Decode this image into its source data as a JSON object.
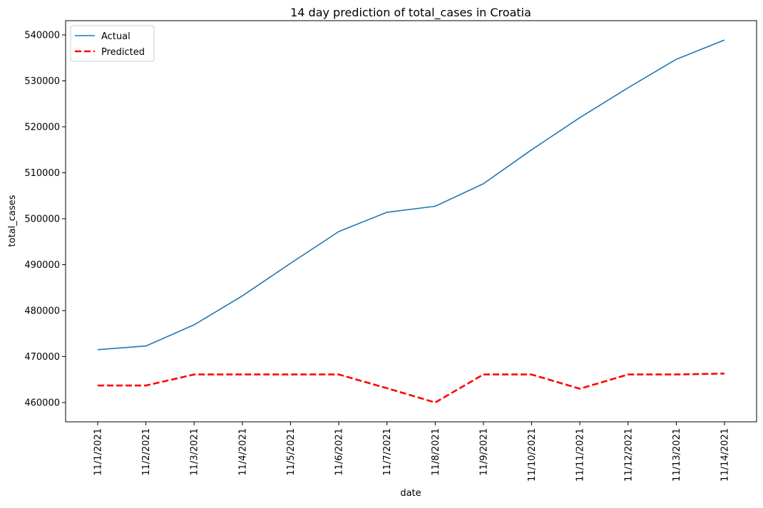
{
  "chart_data": {
    "type": "line",
    "title": "14 day prediction of total_cases in Croatia",
    "xlabel": "date",
    "ylabel": "total_cases",
    "categories": [
      "11/1/2021",
      "11/2/2021",
      "11/3/2021",
      "11/4/2021",
      "11/5/2021",
      "11/6/2021",
      "11/7/2021",
      "11/8/2021",
      "11/9/2021",
      "11/10/2021",
      "11/11/2021",
      "11/12/2021",
      "11/13/2021",
      "11/14/2021"
    ],
    "series": [
      {
        "name": "Actual",
        "color": "#1f77b4",
        "line_style": "solid",
        "values": [
          471500,
          472300,
          476900,
          483200,
          490300,
          497200,
          501400,
          502700,
          507600,
          515000,
          522000,
          528500,
          534700,
          538900
        ]
      },
      {
        "name": "Predicted",
        "color": "#ff0000",
        "line_style": "dashed",
        "values": [
          463700,
          463700,
          466100,
          466100,
          466100,
          466100,
          463100,
          460000,
          466100,
          466100,
          463000,
          466100,
          466100,
          466300
        ]
      }
    ],
    "yticks": [
      460000,
      470000,
      480000,
      490000,
      500000,
      510000,
      520000,
      530000,
      540000
    ],
    "ylim": [
      455800,
      543100
    ],
    "grid": false,
    "legend_position": "top-left"
  }
}
